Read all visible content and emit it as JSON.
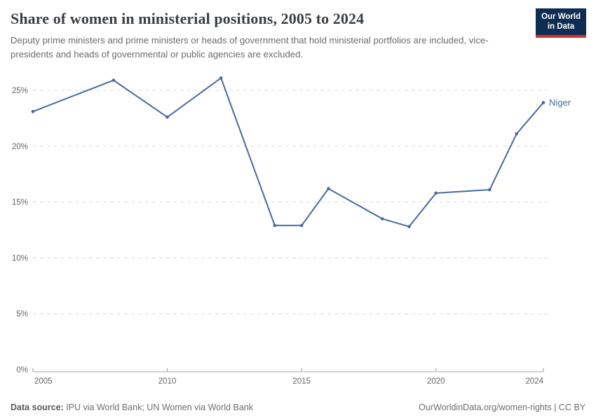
{
  "header": {
    "title": "Share of women in ministerial positions, 2005 to 2024",
    "subtitle": "Deputy prime ministers and prime ministers or heads of government that hold ministerial portfolios are included, vice-presidents and heads of governmental or public agencies are excluded.",
    "logo_line1": "Our World",
    "logo_line2": "in Data"
  },
  "chart_data": {
    "type": "line",
    "title": "Share of women in ministerial positions, 2005 to 2024",
    "x": [
      2005,
      2008,
      2010,
      2012,
      2014,
      2015,
      2016,
      2018,
      2019,
      2020,
      2022,
      2023,
      2024
    ],
    "series": [
      {
        "name": "Niger",
        "color": "#4a699e",
        "values": [
          23.1,
          25.9,
          22.6,
          26.1,
          12.9,
          12.9,
          16.2,
          13.5,
          12.8,
          15.8,
          16.1,
          21.1,
          23.9
        ]
      }
    ],
    "xlim": [
      2005,
      2024
    ],
    "ylim": [
      0,
      25
    ],
    "yticks": [
      0,
      5,
      10,
      15,
      20,
      25
    ],
    "ytick_suffix": "%",
    "xticks": [
      2005,
      2010,
      2015,
      2020,
      2024
    ],
    "grid": "horizontal-dashed",
    "legend_position": "end-of-line-label",
    "colors": {
      "line": "#4a699e",
      "grid": "#dadada",
      "axis": "#a8a8a8",
      "tick": "#999999",
      "axis_label": "#666666"
    }
  },
  "footer": {
    "source_label": "Data source:",
    "source_text": " IPU via World Bank; UN Women via World Bank",
    "link": "OurWorldinData.org/women-rights | CC BY"
  }
}
